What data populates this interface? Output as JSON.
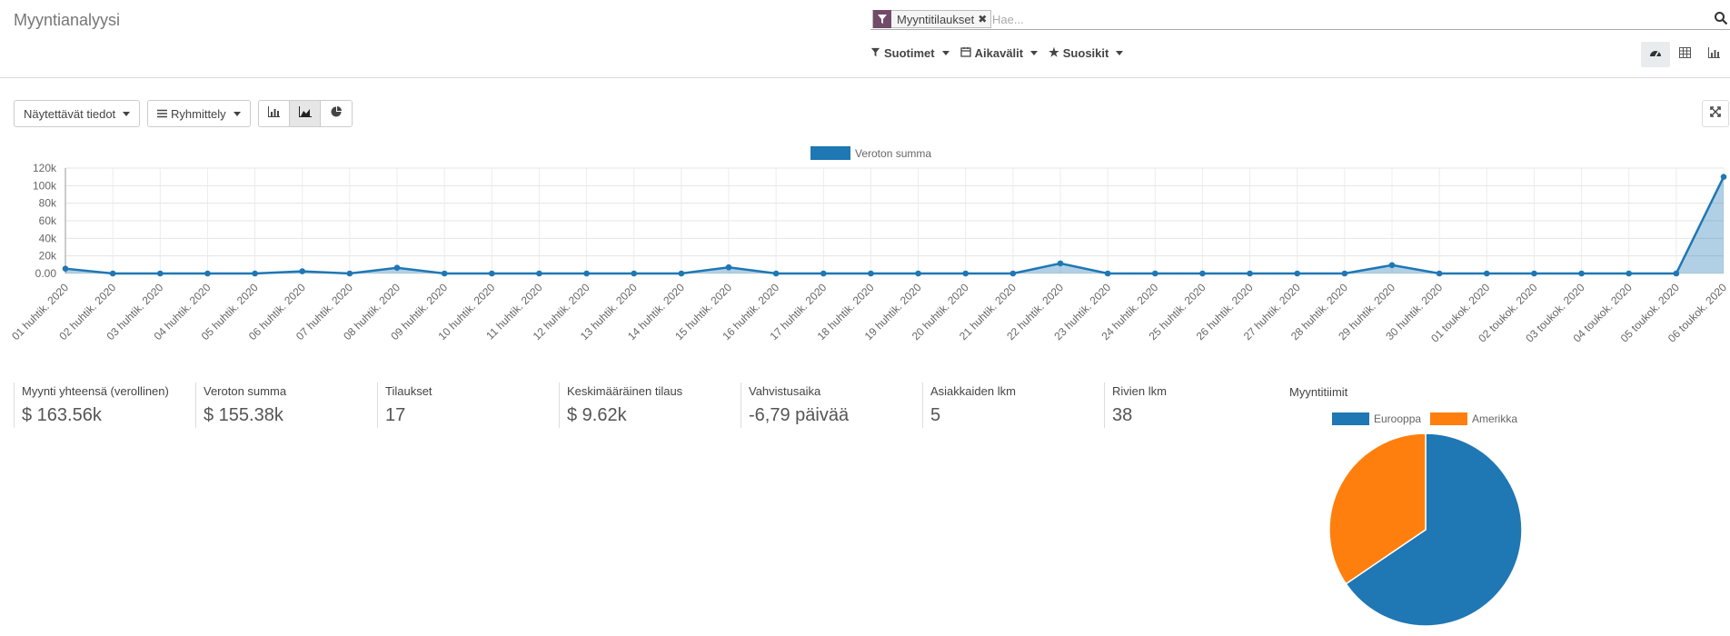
{
  "app": {
    "title": "Myyntianalyysi"
  },
  "search": {
    "facet_label": "Myyntitilaukset",
    "placeholder": "Hae..."
  },
  "menus": {
    "filters": "Suotimet",
    "time_ranges": "Aikavälit",
    "favorites": "Suosikit"
  },
  "toolbar": {
    "measures": "Näytettävät tiedot",
    "group_by": "Ryhmittely"
  },
  "icons": {
    "filter": "filter-icon",
    "remove": "close-icon",
    "search": "search-icon",
    "calendar": "calendar-icon",
    "star": "star-icon",
    "dashboard": "dashboard-icon",
    "table": "table-icon",
    "graph": "bar-chart-icon",
    "list": "list-icon",
    "bar": "bar-chart-icon",
    "area": "area-chart-icon",
    "pie": "pie-chart-icon",
    "expand": "expand-icon"
  },
  "colors": {
    "accent": "#714B67",
    "series_blue": "#1f77b4",
    "series_orange": "#ff7f0e"
  },
  "kpis": [
    {
      "label": "Myynti yhteensä (verollinen)",
      "value": "$ 163.56k"
    },
    {
      "label": "Veroton summa",
      "value": "$ 155.38k"
    },
    {
      "label": "Tilaukset",
      "value": "17"
    },
    {
      "label": "Keskimääräinen tilaus",
      "value": "$ 9.62k"
    },
    {
      "label": "Vahvistusaika",
      "value": "-6,79 päivää"
    },
    {
      "label": "Asiakkaiden lkm",
      "value": "5"
    },
    {
      "label": "Rivien lkm",
      "value": "38"
    }
  ],
  "pie_section": {
    "title": "Myyntitiimit"
  },
  "chart_data": [
    {
      "type": "area",
      "legend": [
        "Veroton summa"
      ],
      "legend_position": "top-center",
      "grid": true,
      "ylim": [
        0,
        120000
      ],
      "yticks": [
        "0.00",
        "20k",
        "40k",
        "60k",
        "80k",
        "100k",
        "120k"
      ],
      "categories": [
        "01 huhtik. 2020",
        "02 huhtik. 2020",
        "03 huhtik. 2020",
        "04 huhtik. 2020",
        "05 huhtik. 2020",
        "06 huhtik. 2020",
        "07 huhtik. 2020",
        "08 huhtik. 2020",
        "09 huhtik. 2020",
        "10 huhtik. 2020",
        "11 huhtik. 2020",
        "12 huhtik. 2020",
        "13 huhtik. 2020",
        "14 huhtik. 2020",
        "15 huhtik. 2020",
        "16 huhtik. 2020",
        "17 huhtik. 2020",
        "18 huhtik. 2020",
        "19 huhtik. 2020",
        "20 huhtik. 2020",
        "21 huhtik. 2020",
        "22 huhtik. 2020",
        "23 huhtik. 2020",
        "24 huhtik. 2020",
        "25 huhtik. 2020",
        "26 huhtik. 2020",
        "27 huhtik. 2020",
        "28 huhtik. 2020",
        "29 huhtik. 2020",
        "30 huhtik. 2020",
        "01 toukok. 2020",
        "02 toukok. 2020",
        "03 toukok. 2020",
        "04 toukok. 2020",
        "05 toukok. 2020",
        "06 toukok. 2020"
      ],
      "series": [
        {
          "name": "Veroton summa",
          "color": "#1f77b4",
          "values": [
            5500,
            0,
            0,
            0,
            0,
            2500,
            0,
            6500,
            0,
            0,
            0,
            0,
            0,
            0,
            7000,
            0,
            0,
            0,
            0,
            0,
            0,
            11500,
            0,
            0,
            0,
            0,
            0,
            0,
            9500,
            0,
            0,
            0,
            0,
            0,
            0,
            110000
          ]
        }
      ]
    },
    {
      "type": "pie",
      "legend": [
        "Eurooppa",
        "Amerikka"
      ],
      "legend_position": "top",
      "slices": [
        {
          "label": "Eurooppa",
          "value": 65.5,
          "color": "#1f77b4"
        },
        {
          "label": "Amerikka",
          "value": 34.5,
          "color": "#ff7f0e"
        }
      ]
    }
  ]
}
